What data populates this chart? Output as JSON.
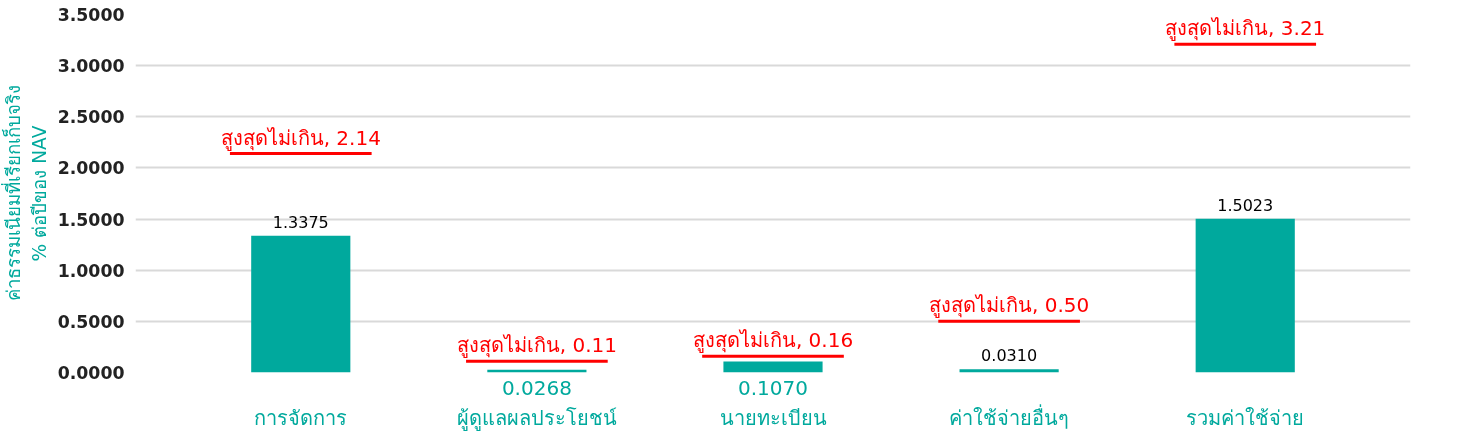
{
  "chart_data": {
    "type": "bar",
    "ylabel": "ค่าธรรมเนียมที่เรียกเก็บจริง\n% ต่อปีของ NAV",
    "categories": [
      "การจัดการ",
      "ผู้ดูแลผลประโยชน์",
      "นายทะเบียน",
      "ค่าใช้จ่ายอื่นๆ",
      "รวมค่าใช้จ่าย"
    ],
    "color": "#00a99d",
    "values": [
      1.3375,
      0.0268,
      0.107,
      0.031,
      1.5023
    ],
    "value_labels": [
      "1.3375",
      "0.0268",
      "0.1070",
      "0.0310",
      "1.5023"
    ],
    "ref_lines": [
      {
        "axis": "y",
        "value": 2.14,
        "label": "สูงสุดไม่เกิน, 2.14",
        "color": "#ff0000"
      },
      {
        "axis": "y",
        "value": 0.11,
        "label": "สูงสุดไม่เกิน, 0.11",
        "color": "#ff0000"
      },
      {
        "axis": "y",
        "value": 0.16,
        "label": "สูงสุดไม่เกิน, 0.16",
        "color": "#ff0000"
      },
      {
        "axis": "y",
        "value": 0.5,
        "label": "สูงสุดไม่เกิน, 0.50",
        "color": "#ff0000"
      },
      {
        "axis": "y",
        "value": 3.21,
        "label": "สูงสุดไม่เกิน, 3.21",
        "color": "#ff0000"
      }
    ],
    "ylim": [
      0,
      3.5
    ],
    "yticks": [
      {
        "value": 0,
        "label": "0.0000"
      },
      {
        "value": 0.5,
        "label": "0.5000"
      },
      {
        "value": 1,
        "label": "1.0000"
      },
      {
        "value": 1.5,
        "label": "1.5000"
      },
      {
        "value": 2,
        "label": "2.0000"
      },
      {
        "value": 2.5,
        "label": "2.5000"
      },
      {
        "value": 3,
        "label": "3.0000"
      },
      {
        "value": 3.5,
        "label": "3.5000"
      }
    ],
    "grid": "y"
  }
}
